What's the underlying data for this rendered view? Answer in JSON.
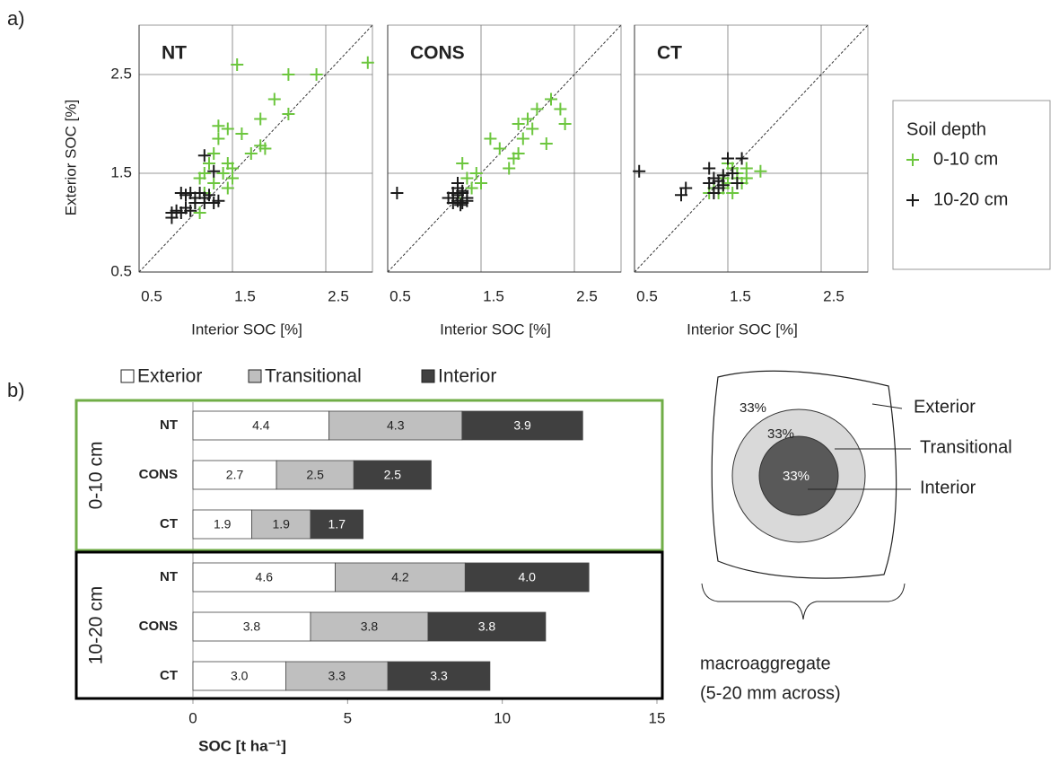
{
  "panel_labels": [
    "a)",
    "b)"
  ],
  "chart_data": [
    {
      "type": "scatter",
      "title": "NT",
      "xlabel": "Interior SOC [%]",
      "ylabel": "Exterior SOC [%]",
      "xlim": [
        0.5,
        3.0
      ],
      "ylim": [
        0.5,
        3.0
      ],
      "xticks": [
        0.5,
        1.5,
        2.5
      ],
      "yticks": [
        0.5,
        1.5,
        2.5
      ],
      "grid": true,
      "identity_line": true,
      "ytick_labels": true,
      "legend_title": "Soil depth",
      "series": [
        {
          "name": "0-10 cm",
          "color": "#6cc63e",
          "x": [
            1.55,
            2.95,
            2.1,
            2.4,
            1.95,
            2.1,
            1.8,
            1.35,
            1.45,
            1.6,
            1.8,
            1.85,
            1.7,
            1.35,
            1.3,
            1.45,
            1.5,
            1.25,
            1.2,
            1.4,
            1.5,
            1.15,
            1.3,
            1.45,
            1.2,
            1.1,
            1.15,
            1.0
          ],
          "values": [
            2.6,
            2.62,
            2.5,
            2.5,
            2.25,
            2.1,
            2.05,
            1.98,
            1.95,
            1.9,
            1.78,
            1.75,
            1.7,
            1.85,
            1.7,
            1.6,
            1.55,
            1.6,
            1.5,
            1.5,
            1.45,
            1.45,
            1.4,
            1.35,
            1.3,
            1.2,
            1.1,
            1.15
          ]
        },
        {
          "name": "10-20 cm",
          "color": "#1a1a1a",
          "x": [
            1.2,
            1.3,
            0.95,
            1.0,
            1.05,
            1.1,
            1.15,
            1.2,
            1.25,
            1.3,
            1.35,
            0.85,
            0.85,
            0.9,
            0.95,
            1.0,
            1.1,
            1.2,
            1.05
          ],
          "values": [
            1.68,
            1.52,
            1.3,
            1.28,
            1.3,
            1.25,
            1.3,
            1.25,
            1.28,
            1.2,
            1.22,
            1.05,
            1.1,
            1.12,
            1.1,
            1.15,
            1.2,
            1.2,
            1.12
          ]
        }
      ]
    },
    {
      "type": "scatter",
      "title": "CONS",
      "xlabel": "Interior SOC [%]",
      "xlim": [
        0.5,
        3.0
      ],
      "ylim": [
        0.5,
        3.0
      ],
      "xticks": [
        0.5,
        1.5,
        2.5
      ],
      "yticks": [
        0.5,
        1.5,
        2.5
      ],
      "grid": true,
      "identity_line": true,
      "ytick_labels": false,
      "series": [
        {
          "name": "0-10 cm",
          "color": "#6cc63e",
          "x": [
            2.25,
            2.1,
            2.35,
            2.4,
            2.0,
            1.9,
            2.05,
            1.95,
            1.6,
            1.7,
            2.2,
            1.9,
            1.85,
            1.8,
            1.45,
            1.5,
            1.35,
            1.3,
            1.4,
            1.25,
            1.3
          ],
          "values": [
            2.25,
            2.15,
            2.15,
            2.0,
            2.05,
            2.0,
            1.95,
            1.85,
            1.85,
            1.75,
            1.8,
            1.7,
            1.65,
            1.55,
            1.5,
            1.4,
            1.45,
            1.6,
            1.35,
            1.3,
            1.25
          ]
        },
        {
          "name": "10-20 cm",
          "color": "#1a1a1a",
          "x": [
            0.6,
            1.2,
            1.25,
            1.3,
            1.2,
            1.25,
            1.3,
            1.35,
            1.15,
            1.25,
            1.3,
            1.2,
            1.35,
            1.25,
            1.28
          ],
          "values": [
            1.3,
            1.3,
            1.35,
            1.3,
            1.25,
            1.22,
            1.2,
            1.25,
            1.25,
            1.28,
            1.32,
            1.2,
            1.22,
            1.4,
            1.18
          ]
        }
      ]
    },
    {
      "type": "scatter",
      "title": "CT",
      "xlabel": "Interior SOC [%]",
      "xlim": [
        0.5,
        3.0
      ],
      "ylim": [
        0.5,
        3.0
      ],
      "xticks": [
        0.5,
        1.5,
        2.5
      ],
      "yticks": [
        0.5,
        1.5,
        2.5
      ],
      "grid": true,
      "identity_line": true,
      "ytick_labels": false,
      "series": [
        {
          "name": "0-10 cm",
          "color": "#6cc63e",
          "x": [
            1.85,
            1.7,
            1.6,
            1.55,
            1.5,
            1.45,
            1.55,
            1.4,
            1.35,
            1.6,
            1.5,
            1.65,
            1.3,
            1.45,
            1.7
          ],
          "values": [
            1.52,
            1.45,
            1.5,
            1.55,
            1.4,
            1.35,
            1.3,
            1.3,
            1.35,
            1.45,
            1.6,
            1.4,
            1.3,
            1.45,
            1.55
          ]
        },
        {
          "name": "10-20 cm",
          "color": "#1a1a1a",
          "x": [
            0.55,
            1.0,
            1.05,
            1.3,
            1.35,
            1.4,
            1.45,
            1.5,
            1.65,
            1.55,
            1.3,
            1.35,
            1.4,
            1.45,
            1.6
          ],
          "values": [
            1.52,
            1.28,
            1.35,
            1.55,
            1.45,
            1.42,
            1.38,
            1.65,
            1.65,
            1.5,
            1.4,
            1.3,
            1.35,
            1.48,
            1.4
          ]
        }
      ]
    },
    {
      "type": "hbar_stacked",
      "xlabel": "SOC [t ha⁻¹]",
      "xlim": [
        0,
        15
      ],
      "xticks": [
        0,
        5,
        10,
        15
      ],
      "groups": [
        {
          "name": "0-10 cm",
          "color": "#70ad47"
        },
        {
          "name": "10-20 cm",
          "color": "#000000"
        }
      ],
      "categories": [
        "NT",
        "CONS",
        "CT",
        "NT",
        "CONS",
        "CT"
      ],
      "series": [
        {
          "name": "Exterior",
          "color": "#ffffff",
          "label_color": "#222222",
          "values": [
            4.4,
            2.7,
            1.9,
            4.6,
            3.8,
            3.0
          ],
          "value_labels": [
            "4.4",
            "2.7",
            "1.9",
            "4.6",
            "3.8",
            "3.0"
          ]
        },
        {
          "name": "Transitional",
          "color": "#bfbfbf",
          "label_color": "#222222",
          "values": [
            4.3,
            2.5,
            1.9,
            4.2,
            3.8,
            3.3
          ],
          "value_labels": [
            "4.3",
            "2.5",
            "1.9",
            "4.2",
            "3.8",
            "3.3"
          ]
        },
        {
          "name": "Interior",
          "color": "#404040",
          "label_color": "#ffffff",
          "values": [
            3.9,
            2.5,
            1.7,
            4.0,
            3.8,
            3.3
          ],
          "value_labels": [
            "3.9",
            "2.5",
            "1.7",
            "4.0",
            "3.8",
            "3.3"
          ]
        }
      ]
    }
  ],
  "diagram": {
    "shares": [
      "33%",
      "33%",
      "33%"
    ],
    "zones": [
      "Exterior",
      "Transitional",
      "Interior"
    ],
    "caption": [
      "macroaggregate",
      "(5-20 mm across)"
    ]
  }
}
